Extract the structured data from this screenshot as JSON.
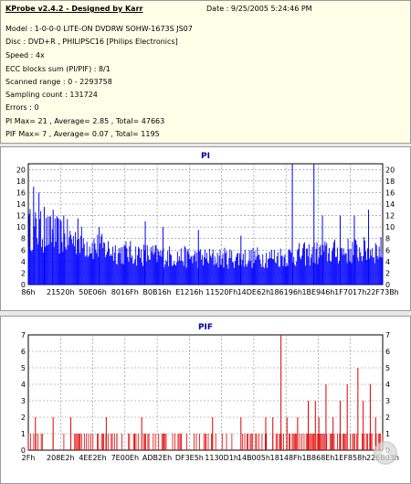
{
  "info": {
    "title": "KProbe v2.4.2 - Designed by Karr",
    "date": "Date : 9/25/2005 5:24:46 PM",
    "model": "Model : 1-0-0-0 LITE-ON DVDRW SOHW-1673S JS07",
    "disc": "Disc : DVD+R , PHILIPSC16 [Philips Electronics]",
    "speed": "Speed : 4x",
    "ecc": "ECC blocks sum (PI/PIF) : 8/1",
    "scanned": "Scanned range : 0 - 2293758",
    "sampling": "Sampling count : 131724",
    "errors": "Errors : 0",
    "pi_summary": "PI Max= 21 , Average= 2.85 , Total= 47663",
    "pif_summary": "PIF Max= 7 , Average= 0.07 , Total= 1195"
  },
  "colors": {
    "pi": "#0000ff",
    "pif": "#e00000",
    "title": "#0000aa",
    "grid": "#888888"
  },
  "chart_data": [
    {
      "type": "bar",
      "title": "PI",
      "ylim": [
        0,
        21
      ],
      "yticks": [
        0,
        2,
        4,
        6,
        8,
        10,
        12,
        14,
        16,
        18,
        20
      ],
      "xticks": [
        "86h",
        "21520h",
        "50E06h",
        "8016Fh",
        "B0B16h",
        "E1216h",
        "11520Fh",
        "14DE62h",
        "186196h",
        "1BE946h",
        "1F7017h",
        "22F73Bh"
      ],
      "grid": true,
      "profile": [
        [
          0,
          10.5
        ],
        [
          0.03,
          10
        ],
        [
          0.06,
          9.5
        ],
        [
          0.1,
          9
        ],
        [
          0.15,
          8
        ],
        [
          0.2,
          7
        ],
        [
          0.25,
          6.2
        ],
        [
          0.3,
          5.8
        ],
        [
          0.4,
          5.3
        ],
        [
          0.5,
          5
        ],
        [
          0.6,
          5
        ],
        [
          0.7,
          5.2
        ],
        [
          0.8,
          5.8
        ],
        [
          0.9,
          6.3
        ],
        [
          1,
          6.5
        ]
      ],
      "spikes": [
        [
          0.015,
          17
        ],
        [
          0.03,
          16
        ],
        [
          0.045,
          13.5
        ],
        [
          0.07,
          13
        ],
        [
          0.1,
          12
        ],
        [
          0.14,
          11.5
        ],
        [
          0.2,
          10
        ],
        [
          0.33,
          11
        ],
        [
          0.38,
          10
        ],
        [
          0.48,
          9.5
        ],
        [
          0.6,
          8.5
        ],
        [
          0.745,
          21
        ],
        [
          0.806,
          21
        ],
        [
          0.83,
          12
        ],
        [
          0.88,
          12
        ],
        [
          0.92,
          12
        ],
        [
          0.96,
          13
        ]
      ]
    },
    {
      "type": "bar",
      "title": "PIF",
      "ylim": [
        0,
        7
      ],
      "yticks": [
        0,
        1,
        2,
        3,
        4,
        5,
        6,
        7
      ],
      "xticks": [
        "2Fh",
        "208E2h",
        "4EE2Eh",
        "7E00Eh",
        "ADB2Eh",
        "DF3E5h",
        "1130D1h",
        "14B005h",
        "18148Fh",
        "1B868Eh",
        "1EF858h",
        "226B03h"
      ],
      "grid": true,
      "spikes": [
        [
          0.02,
          2
        ],
        [
          0.07,
          2
        ],
        [
          0.12,
          2
        ],
        [
          0.15,
          1
        ],
        [
          0.22,
          2
        ],
        [
          0.25,
          1
        ],
        [
          0.3,
          1
        ],
        [
          0.32,
          2
        ],
        [
          0.43,
          1
        ],
        [
          0.5,
          1
        ],
        [
          0.52,
          2
        ],
        [
          0.6,
          2
        ],
        [
          0.67,
          2
        ],
        [
          0.69,
          2
        ],
        [
          0.713,
          7
        ],
        [
          0.73,
          2
        ],
        [
          0.76,
          2
        ],
        [
          0.79,
          3
        ],
        [
          0.81,
          3
        ],
        [
          0.82,
          2
        ],
        [
          0.84,
          4
        ],
        [
          0.86,
          2
        ],
        [
          0.88,
          3
        ],
        [
          0.9,
          4
        ],
        [
          0.93,
          5
        ],
        [
          0.945,
          3
        ],
        [
          0.965,
          4
        ],
        [
          0.98,
          2
        ]
      ]
    }
  ]
}
